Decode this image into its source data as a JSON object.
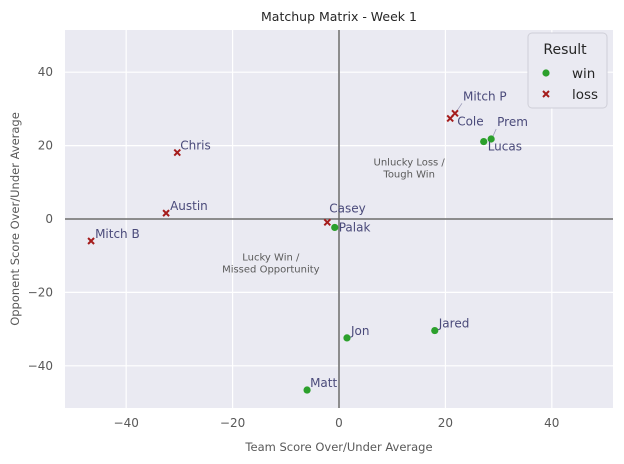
{
  "chart_data": {
    "type": "scatter",
    "title": "Matchup Matrix - Week 1",
    "xlabel": "Team Score Over/Under Average",
    "ylabel": "Opponent Score Over/Under Average",
    "xlim": [
      -51.5,
      51.5
    ],
    "ylim": [
      -51.5,
      51.5
    ],
    "xticks": [
      -40,
      -20,
      0,
      20,
      40
    ],
    "yticks": [
      -40,
      -20,
      0,
      20,
      40
    ],
    "grid": true,
    "legend": {
      "title": "Result",
      "placement": "top-right",
      "entries": [
        {
          "label": "win",
          "marker": "circle",
          "color": "#2ca02c"
        },
        {
          "label": "loss",
          "marker": "x",
          "color": "#a51c1c"
        }
      ]
    },
    "annotations": [
      {
        "text": [
          "Unlucky Loss /",
          "Tough Win"
        ],
        "x": 13,
        "y": 13
      },
      {
        "text": [
          "Lucky Win /",
          "Missed Opportunity"
        ],
        "x": -13,
        "y": -13
      }
    ],
    "points": [
      {
        "name": "Mitch P",
        "x": 21.8,
        "y": 28.8,
        "result": "loss"
      },
      {
        "name": "Cole",
        "x": 20.9,
        "y": 27.4,
        "result": "loss"
      },
      {
        "name": "Prem",
        "x": 28.6,
        "y": 21.8,
        "result": "win"
      },
      {
        "name": "Lucas",
        "x": 27.2,
        "y": 21.1,
        "result": "win"
      },
      {
        "name": "Chris",
        "x": -30.4,
        "y": 18.1,
        "result": "loss"
      },
      {
        "name": "Austin",
        "x": -32.5,
        "y": 1.6,
        "result": "loss"
      },
      {
        "name": "Casey",
        "x": -2.2,
        "y": -0.9,
        "result": "loss"
      },
      {
        "name": "Palak",
        "x": -0.8,
        "y": -2.3,
        "result": "win"
      },
      {
        "name": "Mitch B",
        "x": -46.6,
        "y": -6.0,
        "result": "loss"
      },
      {
        "name": "Jared",
        "x": 18.0,
        "y": -30.4,
        "result": "win"
      },
      {
        "name": "Jon",
        "x": 1.5,
        "y": -32.4,
        "result": "win"
      },
      {
        "name": "Matt",
        "x": -6.0,
        "y": -46.6,
        "result": "win"
      }
    ]
  }
}
